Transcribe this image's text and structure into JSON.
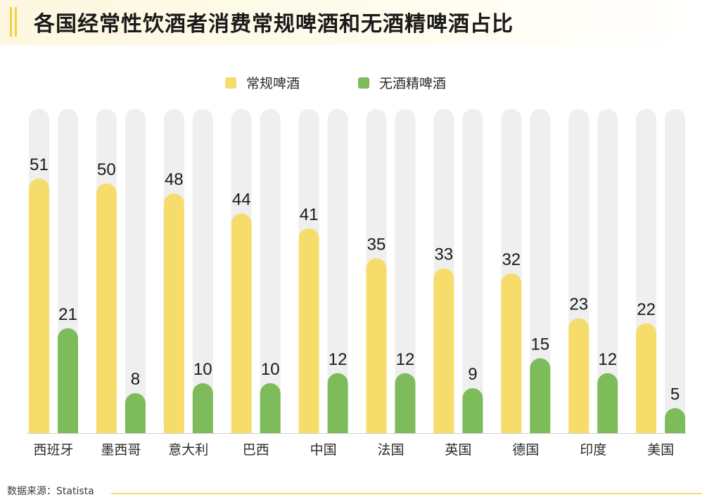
{
  "title": "各国经常性饮酒者消费常规啤酒和无酒精啤酒占比",
  "source": "数据来源：Statista",
  "colors": {
    "regular": "#f6dc6a",
    "nonalcoholic": "#7dbb5b",
    "track": "#efefef",
    "text": "#1a1a1a"
  },
  "chart_data": {
    "type": "bar",
    "categories": [
      "西班牙",
      "墨西哥",
      "意大利",
      "巴西",
      "中国",
      "法国",
      "英国",
      "德国",
      "印度",
      "美国"
    ],
    "series": [
      {
        "name": "常规啤酒",
        "values": [
          51,
          50,
          48,
          44,
          41,
          35,
          33,
          32,
          23,
          22
        ]
      },
      {
        "name": "无酒精啤酒",
        "values": [
          21,
          8,
          10,
          10,
          12,
          12,
          9,
          15,
          12,
          5
        ]
      }
    ],
    "ylim": [
      0,
      78
    ],
    "legend_position": "top-center",
    "grid": false,
    "data_labels": true
  }
}
